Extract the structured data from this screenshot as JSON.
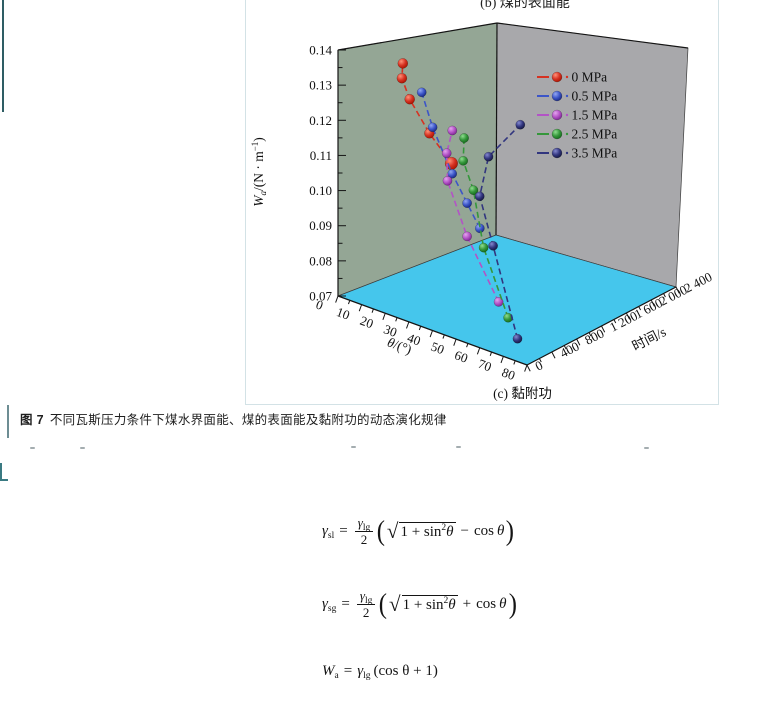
{
  "page": {
    "top_partial_caption": "(b) 煤的表面能",
    "caption": {
      "label": "图 7",
      "text": "不同瓦斯压力条件下煤水界面能、煤的表面能及黏附功的动态演化规律"
    }
  },
  "chart_data": {
    "type": "scatter3d",
    "subtitle": "(c) 黏附功",
    "theta_axis": {
      "label_var": "θ",
      "label_unit": "/(°)",
      "min": 0,
      "max": 80,
      "major_step": 10,
      "minor_step": 5,
      "tick_labels": [
        "0",
        "10",
        "20",
        "30",
        "40",
        "50",
        "60",
        "70",
        "80"
      ]
    },
    "time_axis": {
      "label": "时间/s",
      "min": 0,
      "max": 2400,
      "major_step": 400,
      "minor_step": 200,
      "tick_labels": [
        "0",
        "400",
        "800",
        "1 200",
        "1 600",
        "2 000",
        "2 400"
      ]
    },
    "w_axis": {
      "label_base": "W",
      "label_sub": "a",
      "unit_pre": "/(N · m",
      "unit_sup": "−1",
      "unit_post": ")",
      "min": 0.07,
      "max": 0.14,
      "major_step": 0.01,
      "minor_step": 0.005,
      "tick_labels": [
        "0.07",
        "0.08",
        "0.09",
        "0.10",
        "0.11",
        "0.12",
        "0.13",
        "0.14"
      ]
    },
    "colors": {
      "left_wall": "#94a695",
      "right_wall": "#a8a8ab",
      "floor": "#45c6ec",
      "edge": "#3c3c3c",
      "axis": "#151515",
      "text": "#111111"
    },
    "legend": {
      "entries": [
        "0 MPa",
        "0.5 MPa",
        "1.5 MPa",
        "2.5 MPa",
        "3.5 MPa"
      ]
    },
    "series": [
      {
        "name": "0 MPa",
        "color": "#d63222",
        "ball_light": "#ff9078",
        "ball_dark": "#a81200",
        "points": [
          {
            "theta": 48,
            "time": 0,
            "Wa": 0.1195
          },
          {
            "theta": 37,
            "time": 60,
            "Wa": 0.125
          },
          {
            "theta": 27,
            "time": 120,
            "Wa": 0.132
          },
          {
            "theta": 22,
            "time": 180,
            "Wa": 0.1365
          },
          {
            "theta": 19,
            "time": 300,
            "Wa": 0.1395
          }
        ]
      },
      {
        "name": "0.5 MPa",
        "color": "#3c55c8",
        "ball_light": "#93a7f2",
        "ball_dark": "#18277e",
        "points": [
          {
            "theta": 60,
            "time": 0,
            "Wa": 0.104
          },
          {
            "theta": 53,
            "time": 60,
            "Wa": 0.109
          },
          {
            "theta": 45,
            "time": 120,
            "Wa": 0.115
          },
          {
            "theta": 35,
            "time": 180,
            "Wa": 0.1255
          },
          {
            "theta": 27,
            "time": 300,
            "Wa": 0.133
          }
        ]
      },
      {
        "name": "1.5 MPa",
        "color": "#b353c6",
        "ball_light": "#e3a4ee",
        "ball_dark": "#7c2491",
        "points": [
          {
            "theta": 68,
            "time": 0,
            "Wa": 0.085
          },
          {
            "theta": 53,
            "time": 60,
            "Wa": 0.0995
          },
          {
            "theta": 43,
            "time": 120,
            "Wa": 0.1125
          },
          {
            "theta": 41,
            "time": 180,
            "Wa": 0.1195
          },
          {
            "theta": 40,
            "time": 300,
            "Wa": 0.125
          }
        ]
      },
      {
        "name": "2.5 MPa",
        "color": "#35973b",
        "ball_light": "#8fdd8f",
        "ball_dark": "#146b1c",
        "points": [
          {
            "theta": 72,
            "time": 0,
            "Wa": 0.0815
          },
          {
            "theta": 60,
            "time": 60,
            "Wa": 0.098
          },
          {
            "theta": 54,
            "time": 120,
            "Wa": 0.1125
          },
          {
            "theta": 48,
            "time": 180,
            "Wa": 0.119
          },
          {
            "theta": 45,
            "time": 300,
            "Wa": 0.124
          }
        ]
      },
      {
        "name": "3.5 MPa",
        "color": "#32367f",
        "ball_light": "#8489cf",
        "ball_dark": "#14173f",
        "points": [
          {
            "theta": 76,
            "time": 0,
            "Wa": 0.0765
          },
          {
            "theta": 64,
            "time": 60,
            "Wa": 0.0995
          },
          {
            "theta": 55,
            "time": 180,
            "Wa": 0.1105
          },
          {
            "theta": 47,
            "time": 600,
            "Wa": 0.117
          },
          {
            "theta": 27,
            "time": 1800,
            "Wa": 0.1145
          }
        ]
      }
    ]
  },
  "formulas": [
    {
      "lhs": "γ",
      "lhs_sub": "sl",
      "eq": "=",
      "num": "γ",
      "num_sub": "lg",
      "den": "2",
      "lp": "(",
      "sqrt": "√",
      "rad_pre": "1 + sin",
      "rad_sup": "2",
      "rad_post": "θ",
      "op": "−",
      "tail_fn": "cos",
      "tail_var": "θ",
      "rp": ")"
    },
    {
      "lhs": "γ",
      "lhs_sub": "sg",
      "eq": "=",
      "num": "γ",
      "num_sub": "lg",
      "den": "2",
      "lp": "(",
      "sqrt": "√",
      "rad_pre": "1 + sin",
      "rad_sup": "2",
      "rad_post": "θ",
      "op": "+",
      "tail_fn": "cos",
      "tail_var": "θ",
      "rp": ")"
    },
    {
      "lhs": "W",
      "lhs_sub": "a",
      "eq": "=",
      "rhs": "γ",
      "rhs_sub": "lg",
      "tail": "(cos θ + 1)"
    }
  ]
}
